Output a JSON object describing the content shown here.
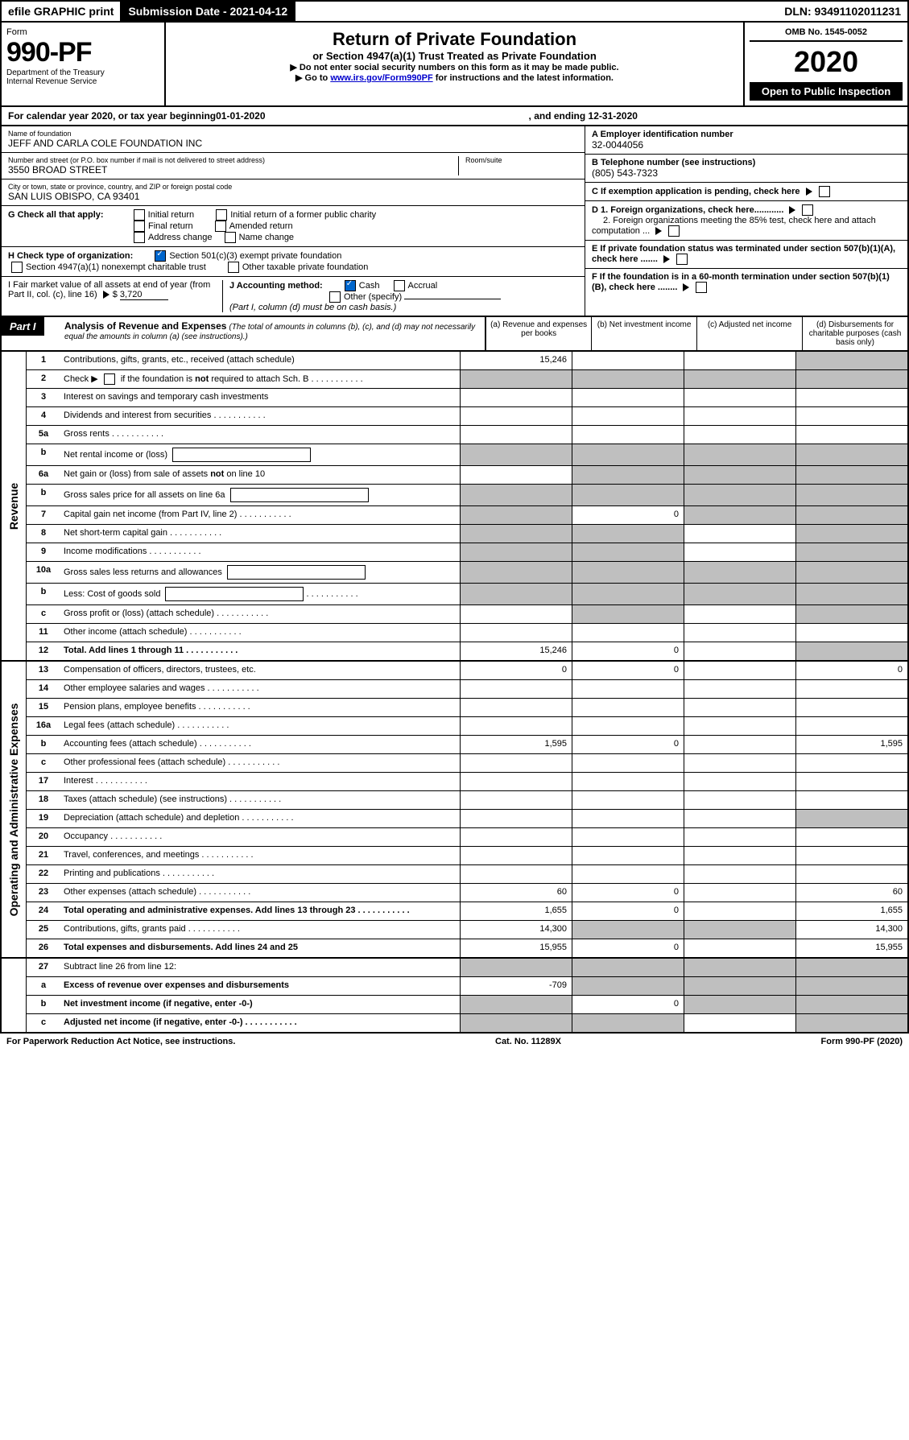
{
  "topbar": {
    "efile": "efile GRAPHIC print",
    "submission": "Submission Date - 2021-04-12",
    "dln": "DLN: 93491102011231"
  },
  "formBox": {
    "form": "Form",
    "number": "990-PF",
    "dept": "Department of the Treasury",
    "irs": "Internal Revenue Service"
  },
  "titleBox": {
    "title": "Return of Private Foundation",
    "sub1": "or Section 4947(a)(1) Trust Treated as Private Foundation",
    "sub2a": "▶ Do not enter social security numbers on this form as it may be made public.",
    "sub2b_pre": "▶ Go to ",
    "sub2b_link": "www.irs.gov/Form990PF",
    "sub2b_post": " for instructions and the latest information."
  },
  "rightBox": {
    "omb": "OMB No. 1545-0052",
    "year": "2020",
    "inspect": "Open to Public Inspection"
  },
  "cal": {
    "pre": "For calendar year 2020, or tax year beginning ",
    "begin": "01-01-2020",
    "mid": ", and ending ",
    "end": "12-31-2020"
  },
  "name": {
    "label": "Name of foundation",
    "val": "JEFF AND CARLA COLE FOUNDATION INC"
  },
  "addr": {
    "label": "Number and street (or P.O. box number if mail is not delivered to street address)",
    "val": "3550 BROAD STREET",
    "room": "Room/suite"
  },
  "city": {
    "label": "City or town, state or province, country, and ZIP or foreign postal code",
    "val": "SAN LUIS OBISPO, CA  93401"
  },
  "ein": {
    "label": "A Employer identification number",
    "val": "32-0044056"
  },
  "tel": {
    "label": "B Telephone number (see instructions)",
    "val": "(805) 543-7323"
  },
  "C": "C  If exemption application is pending, check here",
  "D1": "D 1. Foreign organizations, check here............",
  "D2": "2. Foreign organizations meeting the 85% test, check here and attach computation ...",
  "E": "E  If private foundation status was terminated under section 507(b)(1)(A), check here .......",
  "F": "F  If the foundation is in a 60-month termination under section 507(b)(1)(B), check here ........",
  "G": {
    "label": "G Check all that apply:",
    "opts": [
      "Initial return",
      "Initial return of a former public charity",
      "Final return",
      "Amended return",
      "Address change",
      "Name change"
    ]
  },
  "H": {
    "label": "H Check type of organization:",
    "o1": "Section 501(c)(3) exempt private foundation",
    "o2": "Section 4947(a)(1) nonexempt charitable trust",
    "o3": "Other taxable private foundation"
  },
  "I": {
    "label": "I Fair market value of all assets at end of year (from Part II, col. (c), line 16)",
    "val": "3,720"
  },
  "J": {
    "label": "J Accounting method:",
    "o1": "Cash",
    "o2": "Accrual",
    "o3": "Other (specify)",
    "note": "(Part I, column (d) must be on cash basis.)"
  },
  "part1": {
    "hdr": "Part I",
    "title": "Analysis of Revenue and Expenses",
    "note": "(The total of amounts in columns (b), (c), and (d) may not necessarily equal the amounts in column (a) (see instructions).)",
    "cols": {
      "a": "(a)  Revenue and expenses per books",
      "b": "(b)  Net investment income",
      "c": "(c)  Adjusted net income",
      "d": "(d)  Disbursements for charitable purposes (cash basis only)"
    }
  },
  "sections": {
    "rev": "Revenue",
    "exp": "Operating and Administrative Expenses"
  },
  "lines": {
    "1": {
      "n": "1",
      "d": "Contributions, gifts, grants, etc., received (attach schedule)",
      "a": "15,246"
    },
    "2": {
      "n": "2",
      "d": "Check ▶ ☐ if the foundation is not required to attach Sch. B"
    },
    "3": {
      "n": "3",
      "d": "Interest on savings and temporary cash investments"
    },
    "4": {
      "n": "4",
      "d": "Dividends and interest from securities"
    },
    "5a": {
      "n": "5a",
      "d": "Gross rents"
    },
    "5b": {
      "n": "b",
      "d": "Net rental income or (loss)"
    },
    "6a": {
      "n": "6a",
      "d": "Net gain or (loss) from sale of assets not on line 10"
    },
    "6b": {
      "n": "b",
      "d": "Gross sales price for all assets on line 6a"
    },
    "7": {
      "n": "7",
      "d": "Capital gain net income (from Part IV, line 2)",
      "b": "0"
    },
    "8": {
      "n": "8",
      "d": "Net short-term capital gain"
    },
    "9": {
      "n": "9",
      "d": "Income modifications"
    },
    "10a": {
      "n": "10a",
      "d": "Gross sales less returns and allowances"
    },
    "10b": {
      "n": "b",
      "d": "Less: Cost of goods sold"
    },
    "10c": {
      "n": "c",
      "d": "Gross profit or (loss) (attach schedule)"
    },
    "11": {
      "n": "11",
      "d": "Other income (attach schedule)"
    },
    "12": {
      "n": "12",
      "d": "Total. Add lines 1 through 11",
      "a": "15,246",
      "b": "0"
    },
    "13": {
      "n": "13",
      "d": "Compensation of officers, directors, trustees, etc.",
      "a": "0",
      "b": "0",
      "dd": "0"
    },
    "14": {
      "n": "14",
      "d": "Other employee salaries and wages"
    },
    "15": {
      "n": "15",
      "d": "Pension plans, employee benefits"
    },
    "16a": {
      "n": "16a",
      "d": "Legal fees (attach schedule)"
    },
    "16b": {
      "n": "b",
      "d": "Accounting fees (attach schedule)",
      "a": "1,595",
      "b": "0",
      "dd": "1,595"
    },
    "16c": {
      "n": "c",
      "d": "Other professional fees (attach schedule)"
    },
    "17": {
      "n": "17",
      "d": "Interest"
    },
    "18": {
      "n": "18",
      "d": "Taxes (attach schedule) (see instructions)"
    },
    "19": {
      "n": "19",
      "d": "Depreciation (attach schedule) and depletion"
    },
    "20": {
      "n": "20",
      "d": "Occupancy"
    },
    "21": {
      "n": "21",
      "d": "Travel, conferences, and meetings"
    },
    "22": {
      "n": "22",
      "d": "Printing and publications"
    },
    "23": {
      "n": "23",
      "d": "Other expenses (attach schedule)",
      "a": "60",
      "b": "0",
      "dd": "60"
    },
    "24": {
      "n": "24",
      "d": "Total operating and administrative expenses. Add lines 13 through 23",
      "a": "1,655",
      "b": "0",
      "dd": "1,655"
    },
    "25": {
      "n": "25",
      "d": "Contributions, gifts, grants paid",
      "a": "14,300",
      "dd": "14,300"
    },
    "26": {
      "n": "26",
      "d": "Total expenses and disbursements. Add lines 24 and 25",
      "a": "15,955",
      "b": "0",
      "dd": "15,955"
    },
    "27": {
      "n": "27",
      "d": "Subtract line 26 from line 12:"
    },
    "27a": {
      "n": "a",
      "d": "Excess of revenue over expenses and disbursements",
      "a": "-709"
    },
    "27b": {
      "n": "b",
      "d": "Net investment income (if negative, enter -0-)",
      "b": "0"
    },
    "27c": {
      "n": "c",
      "d": "Adjusted net income (if negative, enter -0-)"
    }
  },
  "footer": {
    "left": "For Paperwork Reduction Act Notice, see instructions.",
    "mid": "Cat. No. 11289X",
    "right": "Form 990-PF (2020)"
  }
}
